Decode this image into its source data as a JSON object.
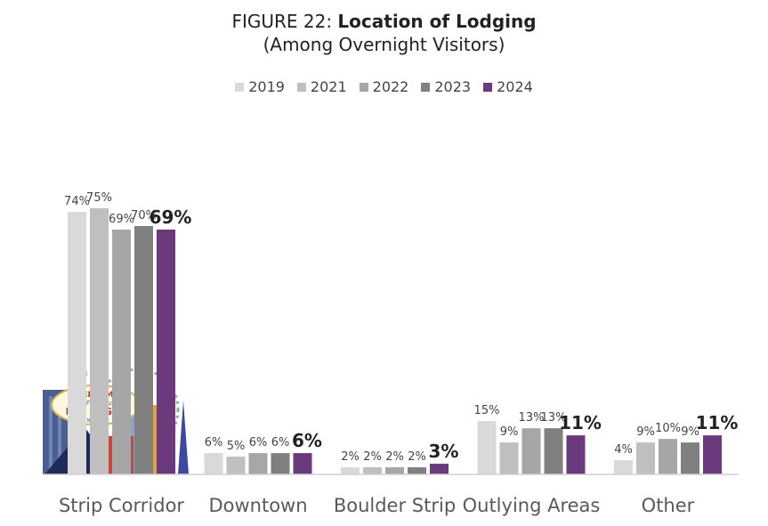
{
  "chart_data": {
    "type": "bar",
    "title_prefix": "FIGURE 22: ",
    "title": "Location of Lodging",
    "subtitle": "(Among Overnight Visitors)",
    "xlabel": "",
    "ylabel": "",
    "ylim": [
      0,
      80
    ],
    "grid": false,
    "legend_position": "top",
    "categories": [
      "Strip Corridor",
      "Downtown",
      "Boulder Strip",
      "Outlying Areas",
      "Other"
    ],
    "series": [
      {
        "name": "2019",
        "color": "#d9d9d9",
        "values": [
          74,
          6,
          2,
          15,
          4
        ]
      },
      {
        "name": "2021",
        "color": "#bfbfbf",
        "values": [
          75,
          5,
          2,
          9,
          9
        ]
      },
      {
        "name": "2022",
        "color": "#a6a6a6",
        "values": [
          69,
          6,
          2,
          13,
          10
        ]
      },
      {
        "name": "2023",
        "color": "#808080",
        "values": [
          70,
          6,
          2,
          13,
          9
        ]
      },
      {
        "name": "2024",
        "color": "#6b3a7d",
        "values": [
          69,
          6,
          3,
          11,
          11
        ]
      }
    ],
    "value_suffix": "%",
    "highlight_series": "2024"
  },
  "illustration": {
    "sign_text": [
      "WELCOME",
      "to Fabulous",
      "LAS VEGAS",
      "NEVADA"
    ]
  }
}
